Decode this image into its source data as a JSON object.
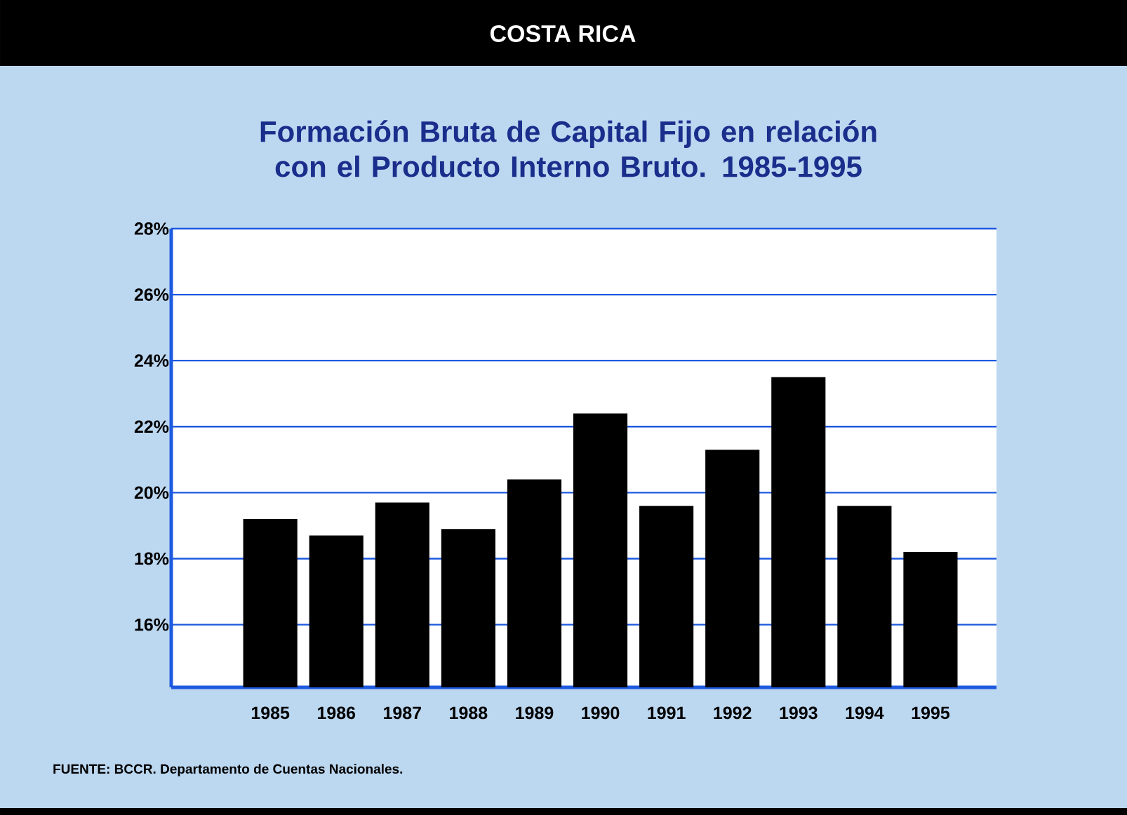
{
  "chart_data": {
    "type": "bar",
    "title": "COSTA RICA",
    "subtitle": "Formación Bruta de Capital Fijo en relación con el Producto Interno Bruto. 1985-1995",
    "categories": [
      "1985",
      "1986",
      "1987",
      "1988",
      "1989",
      "1990",
      "1991",
      "1992",
      "1993",
      "1994",
      "1995"
    ],
    "values": [
      19.2,
      18.7,
      19.7,
      18.9,
      20.4,
      22.4,
      19.6,
      21.3,
      23.5,
      19.6,
      18.2
    ],
    "color": "#000000",
    "ylim": [
      14.1,
      28
    ],
    "yticks": [
      {
        "value": 16,
        "label": "16%"
      },
      {
        "value": 18,
        "label": "18%"
      },
      {
        "value": 20,
        "label": "20%"
      },
      {
        "value": 22,
        "label": "22%"
      },
      {
        "value": 24,
        "label": "24%"
      },
      {
        "value": 26,
        "label": "26%"
      },
      {
        "value": 28,
        "label": "28%"
      }
    ],
    "grid": "y",
    "annotations": [
      "FUENTE: BCCR. Departamento de Cuentas Nacionales."
    ]
  }
}
